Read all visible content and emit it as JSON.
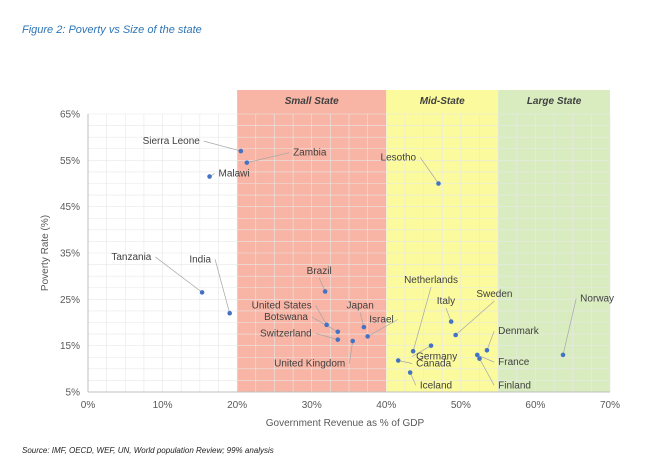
{
  "figure_title": "Figure 2: Poverty vs Size of the state",
  "source": "Source: IMF, OECD, WEF, UN, World population Review; 99% analysis",
  "colors": {
    "point": "#4472c4",
    "small_band": "#f8b4a4",
    "mid_band": "#fbfb9e",
    "large_band": "#d9ecbf",
    "axis_text": "#595959",
    "grid": "#e8e8e8"
  },
  "chart_data": {
    "type": "scatter",
    "title": "",
    "xlabel": "Government Revenue as % of GDP",
    "ylabel": "Poverty Rate (%)",
    "xlim": [
      0,
      70
    ],
    "ylim": [
      5,
      65
    ],
    "x_ticks": [
      "0%",
      "10%",
      "20%",
      "30%",
      "40%",
      "50%",
      "60%",
      "70%"
    ],
    "y_ticks": [
      "5%",
      "15%",
      "25%",
      "35%",
      "45%",
      "55%",
      "65%"
    ],
    "bands": [
      {
        "label": "Small State",
        "from": 20,
        "to": 40,
        "color": "#f8b4a4"
      },
      {
        "label": "Mid-State",
        "from": 40,
        "to": 55,
        "color": "#fbfb9e"
      },
      {
        "label": "Large State",
        "from": 55,
        "to": 70,
        "color": "#d9ecbf"
      }
    ],
    "points": [
      {
        "label": "Sierra Leone",
        "x": 20.5,
        "y": 57,
        "lx": 15,
        "ly": 58.5,
        "anchor": "end"
      },
      {
        "label": "Zambia",
        "x": 21.3,
        "y": 54.5,
        "lx": 27.5,
        "ly": 56,
        "anchor": "start"
      },
      {
        "label": "Malawi",
        "x": 16.3,
        "y": 51.5,
        "lx": 17.5,
        "ly": 51.5,
        "anchor": "start"
      },
      {
        "label": "Lesotho",
        "x": 47,
        "y": 50,
        "lx": 44,
        "ly": 55,
        "anchor": "end"
      },
      {
        "label": "Tanzania",
        "x": 15.3,
        "y": 26.5,
        "lx": 8.5,
        "ly": 33.5,
        "anchor": "end"
      },
      {
        "label": "India",
        "x": 19,
        "y": 22,
        "lx": 16.5,
        "ly": 33,
        "anchor": "end"
      },
      {
        "label": "Brazil",
        "x": 31.8,
        "y": 26.7,
        "lx": 31,
        "ly": 30.5,
        "anchor": "middle"
      },
      {
        "label": "United States",
        "x": 32,
        "y": 19.5,
        "lx": 30,
        "ly": 23,
        "anchor": "end"
      },
      {
        "label": "Botswana",
        "x": 33.5,
        "y": 18,
        "lx": 29.5,
        "ly": 20.5,
        "anchor": "end"
      },
      {
        "label": "Japan",
        "x": 37,
        "y": 19,
        "lx": 36.5,
        "ly": 23,
        "anchor": "middle"
      },
      {
        "label": "Switzerland",
        "x": 33.5,
        "y": 16.3,
        "lx": 30,
        "ly": 17,
        "anchor": "end"
      },
      {
        "label": "Israel",
        "x": 37.5,
        "y": 17,
        "lx": 41,
        "ly": 20,
        "anchor": "end"
      },
      {
        "label": "United Kingdom",
        "x": 35.5,
        "y": 16,
        "lx": 34.5,
        "ly": 10.5,
        "anchor": "end"
      },
      {
        "label": "Netherlands",
        "x": 43.6,
        "y": 13.8,
        "lx": 46,
        "ly": 28.5,
        "anchor": "middle"
      },
      {
        "label": "Italy",
        "x": 48.7,
        "y": 20.2,
        "lx": 48,
        "ly": 24,
        "anchor": "middle"
      },
      {
        "label": "Sweden",
        "x": 49.3,
        "y": 17.3,
        "lx": 54.5,
        "ly": 25.5,
        "anchor": "middle"
      },
      {
        "label": "Norway",
        "x": 63.7,
        "y": 13,
        "lx": 66,
        "ly": 24.5,
        "anchor": "start"
      },
      {
        "label": "Denmark",
        "x": 53.5,
        "y": 14,
        "lx": 55,
        "ly": 17.5,
        "anchor": "start"
      },
      {
        "label": "Germany",
        "x": 46,
        "y": 15,
        "lx": 44,
        "ly": 12,
        "anchor": "start"
      },
      {
        "label": "Canada",
        "x": 41.6,
        "y": 11.8,
        "lx": 44,
        "ly": 10.5,
        "anchor": "start"
      },
      {
        "label": "France",
        "x": 52.2,
        "y": 13,
        "lx": 55,
        "ly": 10.8,
        "anchor": "start"
      },
      {
        "label": "Finland",
        "x": 52.5,
        "y": 12.2,
        "lx": 55,
        "ly": 5.8,
        "anchor": "start"
      },
      {
        "label": "Iceland",
        "x": 43.2,
        "y": 9.2,
        "lx": 44.5,
        "ly": 5.8,
        "anchor": "start"
      }
    ]
  }
}
